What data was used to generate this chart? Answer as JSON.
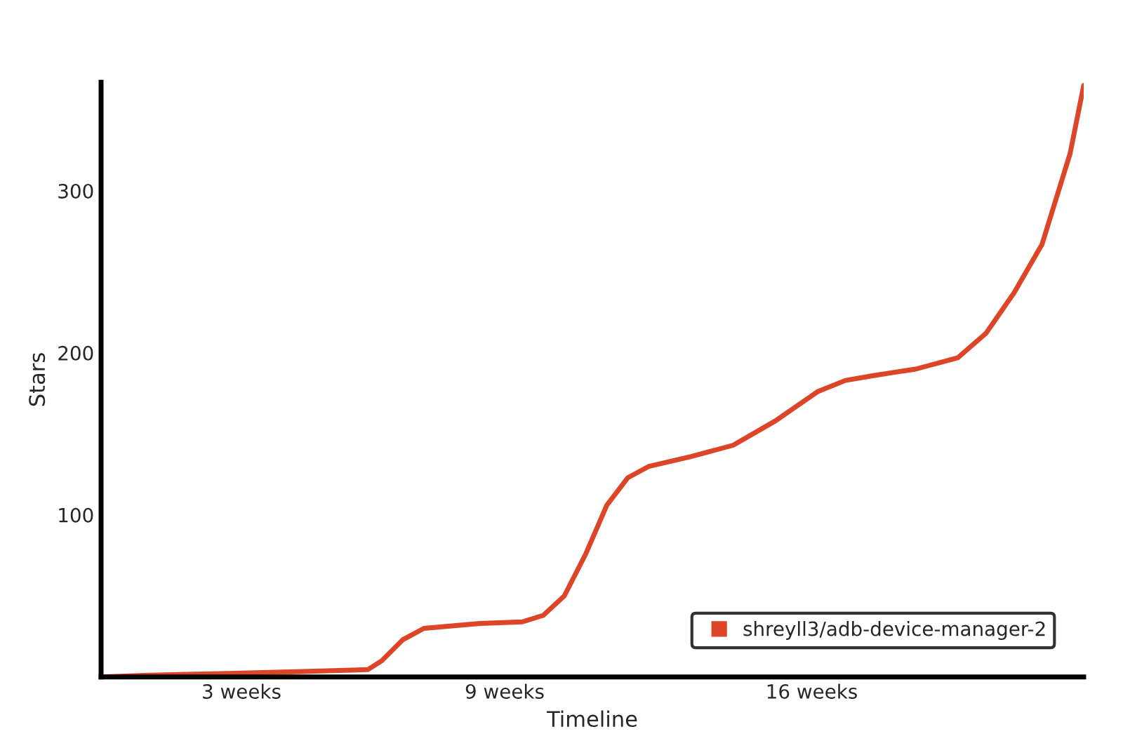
{
  "chart_data": {
    "type": "line",
    "xlabel": "Timeline",
    "ylabel": "Stars",
    "xlim": [
      -0.2,
      22.2
    ],
    "xticks": [
      {
        "value": 3,
        "label": "3 weeks"
      },
      {
        "value": 9,
        "label": "9 weeks"
      },
      {
        "value": 16,
        "label": "16 weeks"
      }
    ],
    "ylim": [
      0,
      367
    ],
    "yticks": [
      100,
      200,
      300
    ],
    "grid": false,
    "legend": "bottom right",
    "marker": "none",
    "line_style": "solid",
    "series": [
      {
        "name": "shreyll3/adb-device-manager-2",
        "color": "#dd4528",
        "x": [
          -0.2,
          0.76,
          2.36,
          3.96,
          5.88,
          6.2,
          6.68,
          7.16,
          8.44,
          9.4,
          9.88,
          10.36,
          10.85,
          11.33,
          11.81,
          12.29,
          13.25,
          14.21,
          15.17,
          16.13,
          16.77,
          17.41,
          18.37,
          19.33,
          19.97,
          20.61,
          21.25,
          21.89,
          22.2
        ],
        "values": [
          0,
          1,
          2,
          3,
          4.5,
          10,
          23,
          30,
          33,
          34,
          38,
          50,
          76,
          106,
          123,
          130,
          136,
          143,
          158,
          176,
          183,
          186,
          190,
          197,
          212,
          237,
          267,
          323,
          365
        ]
      }
    ]
  }
}
